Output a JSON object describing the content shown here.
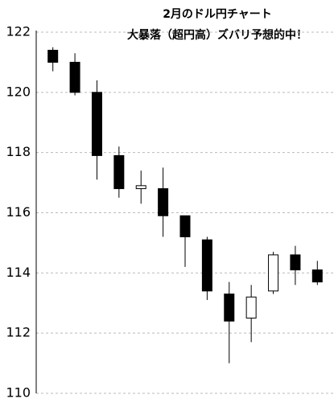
{
  "chart_data": {
    "type": "candlestick",
    "title": "2月のドル円チャート",
    "subtitle": "大暴落（超円高）ズバリ予想的中！",
    "categories": [
      null,
      null,
      null,
      null,
      null,
      null,
      null,
      null,
      null,
      null,
      null,
      null,
      null
    ],
    "open": [
      121.4,
      121.0,
      120.0,
      117.9,
      116.8,
      116.8,
      115.9,
      115.1,
      113.3,
      112.5,
      113.4,
      114.6,
      114.1
    ],
    "high": [
      121.5,
      121.3,
      120.4,
      118.2,
      117.4,
      117.5,
      115.9,
      115.2,
      113.7,
      113.6,
      114.7,
      114.9,
      114.4
    ],
    "low": [
      120.7,
      119.9,
      117.1,
      116.5,
      116.3,
      115.2,
      114.2,
      113.1,
      111.0,
      111.7,
      113.3,
      113.6,
      113.6
    ],
    "close": [
      121.0,
      120.0,
      117.9,
      116.8,
      116.9,
      115.9,
      115.2,
      113.4,
      112.4,
      113.2,
      114.6,
      114.1,
      113.7
    ],
    "up_color": "#ffffff",
    "down_color": "#000000",
    "ylim": [
      110,
      122
    ],
    "yticks": [
      110,
      112,
      114,
      116,
      118,
      120,
      122
    ],
    "grid": true
  }
}
